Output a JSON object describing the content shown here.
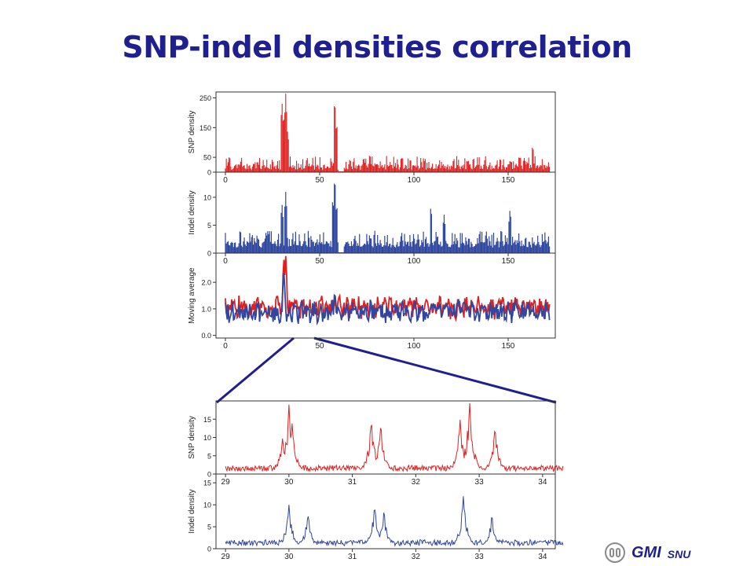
{
  "title": "SNP-indel densities correlation",
  "logo": {
    "main": "GMI",
    "sub": "SNU"
  },
  "colors": {
    "title": "#1f1f8f",
    "snp": "#e02020",
    "indel": "#2f47a0",
    "zoom_line": "#1f1f8f"
  },
  "chart_data": [
    {
      "type": "line",
      "panel": "top-snp",
      "ylabel": "SNP density",
      "yticks": [
        0,
        50,
        150,
        250
      ],
      "ylim": [
        0,
        270
      ],
      "xticks": [
        0,
        50,
        100,
        150
      ],
      "xlim": [
        -5,
        175
      ],
      "series": [
        {
          "color": "#e02020",
          "baseline_range": [
            8,
            55
          ],
          "peaks": [
            [
              30,
              240
            ],
            [
              31,
              180
            ],
            [
              32,
              265
            ],
            [
              33,
              140
            ],
            [
              58,
              250
            ],
            [
              59,
              170
            ],
            [
              163,
              90
            ]
          ],
          "gap": [
            60,
            63
          ]
        }
      ]
    },
    {
      "type": "bar",
      "panel": "top-indel",
      "ylabel": "Indel density",
      "yticks": [
        0,
        5,
        10
      ],
      "ylim": [
        0,
        14.5
      ],
      "xticks": [
        0,
        50,
        100,
        150
      ],
      "xlim": [
        -5,
        175
      ],
      "series": [
        {
          "color": "#2f47a0",
          "baseline_range": [
            1,
            4
          ],
          "peaks": [
            [
              30,
              9
            ],
            [
              32,
              11
            ],
            [
              57,
              10
            ],
            [
              58,
              14
            ],
            [
              59,
              9
            ],
            [
              109,
              8.5
            ],
            [
              116,
              7
            ],
            [
              151,
              8
            ]
          ],
          "gap": [
            60,
            63
          ]
        }
      ]
    },
    {
      "type": "line",
      "panel": "top-moving-average",
      "ylabel": "Moving average",
      "yticks": [
        "0.0",
        "1.0",
        "2.0"
      ],
      "ylim": [
        -0.1,
        3.1
      ],
      "xticks": [
        0,
        50,
        100,
        150
      ],
      "xlim": [
        -5,
        175
      ],
      "series": [
        {
          "color": "#e02020",
          "mean": 1.05,
          "peaks": [
            [
              31,
              2.9
            ],
            [
              32,
              3.0
            ]
          ]
        },
        {
          "color": "#2f47a0",
          "mean": 0.9,
          "peaks": [
            [
              31,
              2.4
            ],
            [
              58,
              1.7
            ]
          ]
        }
      ]
    },
    {
      "type": "line",
      "panel": "zoom-snp",
      "ylabel": "SNP density",
      "yticks": [
        0,
        5,
        10,
        15
      ],
      "ylim": [
        0,
        20
      ],
      "xticks": [
        29,
        30,
        31,
        32,
        33,
        34
      ],
      "xlim": [
        28.85,
        34.2
      ],
      "series": [
        {
          "color": "#e02020",
          "peaks": [
            [
              29.9,
              10
            ],
            [
              30.0,
              19
            ],
            [
              30.05,
              14
            ],
            [
              31.3,
              15
            ],
            [
              31.45,
              14
            ],
            [
              32.7,
              15
            ],
            [
              32.85,
              20
            ],
            [
              33.25,
              13
            ]
          ]
        }
      ]
    },
    {
      "type": "line",
      "panel": "zoom-indel",
      "ylabel": "Indel density",
      "yticks": [
        0,
        5,
        10,
        15
      ],
      "ylim": [
        0,
        17
      ],
      "xticks": [
        29,
        30,
        31,
        32,
        33,
        34
      ],
      "xlim": [
        28.85,
        34.2
      ],
      "series": [
        {
          "color": "#2f47a0",
          "peaks": [
            [
              30.0,
              10
            ],
            [
              30.3,
              8
            ],
            [
              31.35,
              10
            ],
            [
              31.5,
              9
            ],
            [
              32.75,
              12
            ],
            [
              33.2,
              8
            ]
          ]
        }
      ]
    }
  ]
}
